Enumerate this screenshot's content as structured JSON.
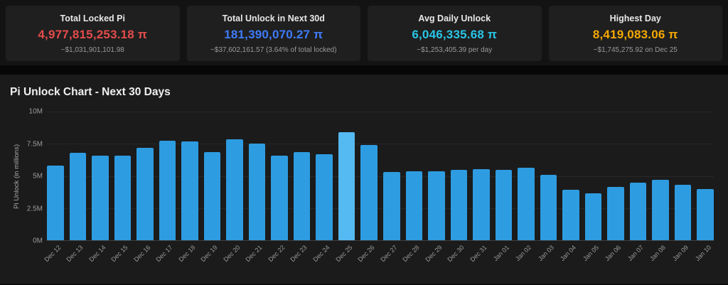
{
  "cards": [
    {
      "title": "Total Locked Pi",
      "value": "4,977,815,253.18 π",
      "sub": "~$1,031,901,101.98",
      "color": "#e44c4c"
    },
    {
      "title": "Total Unlock in Next 30d",
      "value": "181,390,070.27 π",
      "sub": "~$37,602,161.57 (3.64% of total locked)",
      "color": "#3e7bfa"
    },
    {
      "title": "Avg Daily Unlock",
      "value": "6,046,335.68 π",
      "sub": "~$1,253,405.39 per day",
      "color": "#29c5e6"
    },
    {
      "title": "Highest Day",
      "value": "8,419,083.06 π",
      "sub": "~$1,745,275.92 on Dec 25",
      "color": "#f5a800"
    }
  ],
  "chart_data": {
    "type": "bar",
    "title": "Pi Unlock Chart - Next 30 Days",
    "xlabel": "",
    "ylabel": "Pi Unlock (in millions)",
    "ylim": [
      0,
      10
    ],
    "ytick_labels": [
      "10M",
      "7.5M",
      "5M",
      "2.5M",
      "0M"
    ],
    "grid": true,
    "legend_position": "none",
    "categories": [
      "Dec 12",
      "Dec 13",
      "Dec 14",
      "Dec 15",
      "Dec 16",
      "Dec 17",
      "Dec 18",
      "Dec 19",
      "Dec 20",
      "Dec 21",
      "Dec 22",
      "Dec 23",
      "Dec 24",
      "Dec 25",
      "Dec 26",
      "Dec 27",
      "Dec 28",
      "Dec 29",
      "Dec 30",
      "Dec 31",
      "Jan 01",
      "Jan 02",
      "Jan 03",
      "Jan 04",
      "Jan 05",
      "Jan 06",
      "Jan 07",
      "Jan 08",
      "Jan 09",
      "Jan 10"
    ],
    "values": [
      5.8,
      6.8,
      6.6,
      6.6,
      7.2,
      7.75,
      7.7,
      6.85,
      7.85,
      7.5,
      6.55,
      6.85,
      6.7,
      8.42,
      7.4,
      5.3,
      5.35,
      5.35,
      5.45,
      5.55,
      5.45,
      5.65,
      5.1,
      3.95,
      3.65,
      4.15,
      4.45,
      4.7,
      4.3,
      4.0
    ],
    "bar_color": "#2e9ce1",
    "highlight": {
      "index": 13,
      "color": "#55b9f2"
    }
  }
}
